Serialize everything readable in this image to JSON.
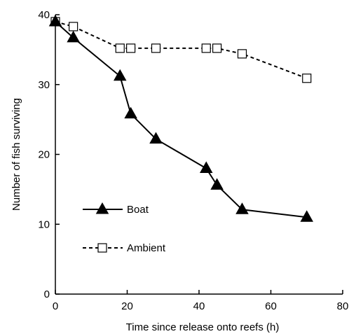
{
  "chart_data": {
    "type": "line",
    "xlabel": "Time since release onto reefs (h)",
    "ylabel": "Number of fish surviving",
    "xlim": [
      0,
      80
    ],
    "ylim": [
      0,
      40
    ],
    "x_ticks": [
      0,
      20,
      40,
      60,
      80
    ],
    "y_ticks": [
      0,
      10,
      20,
      30,
      40
    ],
    "grid": false,
    "legend_position": "lower-left",
    "series": [
      {
        "name": "Boat",
        "marker": "filled-triangle",
        "line_style": "solid",
        "x": [
          0,
          5,
          18,
          21,
          28,
          42,
          45,
          52,
          70
        ],
        "y": [
          39,
          36.7,
          31.2,
          25.8,
          22.2,
          18,
          15.6,
          12.1,
          11
        ]
      },
      {
        "name": "Ambient",
        "marker": "open-square",
        "line_style": "dashed",
        "x": [
          0,
          5,
          18,
          21,
          28,
          42,
          45,
          52,
          70
        ],
        "y": [
          39,
          38.3,
          35.2,
          35.2,
          35.2,
          35.2,
          35.2,
          34.4,
          30.9
        ]
      }
    ]
  }
}
